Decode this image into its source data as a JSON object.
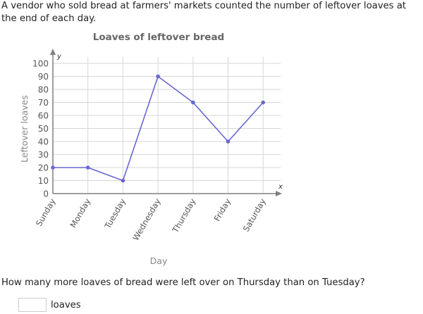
{
  "intro_text": "A vendor who sold bread at farmers' markets counted the number of leftover loaves at the end of each day.",
  "question": "How many more loaves of bread were left over on Thursday than on Tuesday?",
  "answer": {
    "value": "",
    "unit": "loaves"
  },
  "colors": {
    "line": "#6868d2",
    "grid": "#d6d6d6",
    "axis": "#808080"
  },
  "chart_data": {
    "type": "line",
    "title": "Loaves of leftover bread",
    "xlabel": "Day",
    "ylabel": "Leftover loaves",
    "x_axis_symbol": "x",
    "y_axis_symbol": "y",
    "categories": [
      "Sunday",
      "Monday",
      "Tuesday",
      "Wednesday",
      "Thursday",
      "Friday",
      "Saturday"
    ],
    "values": [
      20,
      20,
      10,
      90,
      70,
      40,
      70
    ],
    "yticks": [
      "0",
      "10",
      "20",
      "30",
      "40",
      "50",
      "60",
      "70",
      "80",
      "90",
      "100"
    ],
    "ylim": [
      0,
      100
    ],
    "grid": true,
    "legend": null
  }
}
